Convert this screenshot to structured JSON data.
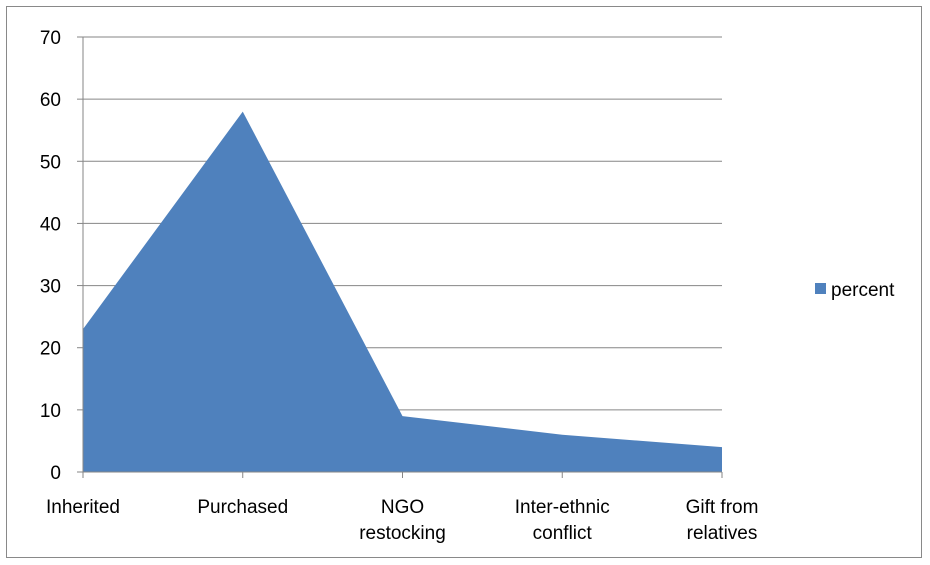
{
  "chart_data": {
    "type": "area",
    "categories": [
      "Inherited",
      "Purchased",
      "NGO\nrestocking",
      "Inter-ethnic\nconflict",
      "Gift from\nrelatives"
    ],
    "series": [
      {
        "name": "percent",
        "values": [
          23,
          58,
          9,
          6,
          4
        ],
        "color": "#4f81bd"
      }
    ],
    "ylim": [
      0,
      70
    ],
    "yticks": [
      0,
      10,
      20,
      30,
      40,
      50,
      60,
      70
    ],
    "grid": true,
    "legend": "right",
    "gridColor": "#868686",
    "axisColor": "#868686"
  }
}
